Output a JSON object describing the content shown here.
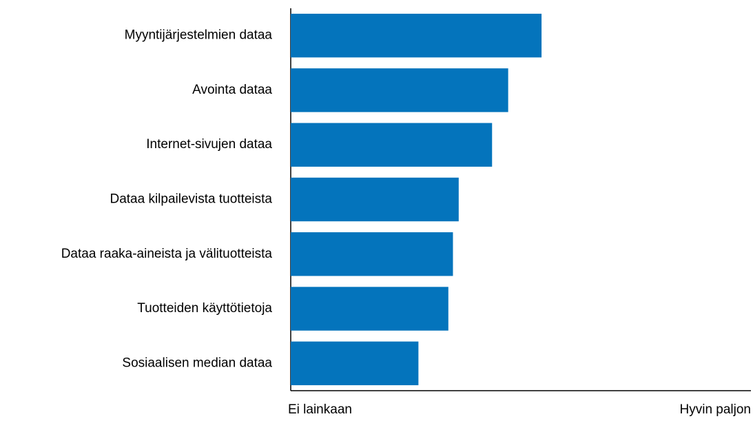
{
  "chart_data": {
    "type": "barh",
    "categories": [
      "Myyntijärjestelmien dataa",
      "Avointa dataa",
      "Internet-sivujen dataa",
      "Dataa kilpailevista tuotteista",
      "Dataa raaka-aineista ja välituotteista",
      "Tuotteiden käyttötietoja",
      "Sosiaalisen median dataa"
    ],
    "values": [
      3.18,
      2.89,
      2.75,
      2.46,
      2.41,
      2.37,
      2.11
    ],
    "color": "#0474bc",
    "xlim": [
      1,
      5
    ],
    "xticks": [
      {
        "value": 1,
        "label": "Ei lainkaan"
      },
      {
        "value": 5,
        "label": "Hyvin paljon"
      }
    ]
  }
}
